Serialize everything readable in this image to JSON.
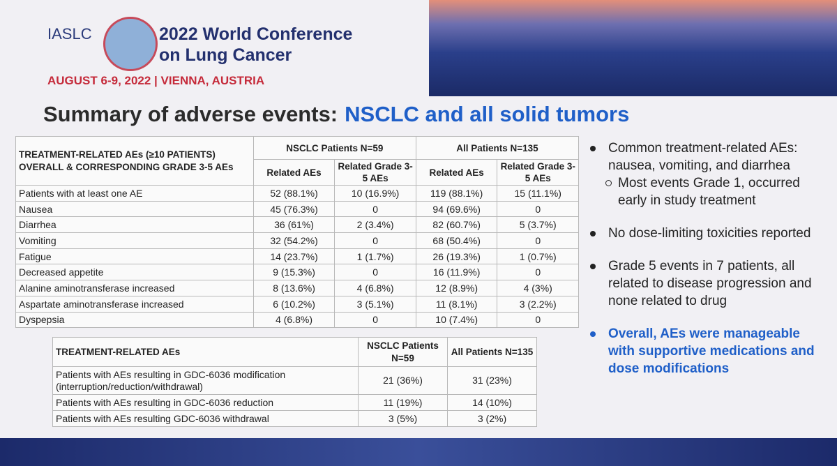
{
  "header": {
    "org": "IASLC",
    "conference": [
      "2022 World Conference",
      "on Lung Cancer"
    ],
    "date": "AUGUST 6-9, 2022 | VIENNA, AUSTRIA"
  },
  "title": {
    "black": "Summary of adverse events:",
    "blue": "NSCLC and all solid tumors"
  },
  "table1": {
    "corner": [
      "TREATMENT-RELATED AEs (≥10 PATIENTS)",
      "OVERALL & CORRESPONDING GRADE 3-5 AEs"
    ],
    "groups": [
      "NSCLC Patients N=59",
      "All Patients N=135"
    ],
    "subheaders": [
      "Related AEs",
      "Related Grade 3-5 AEs",
      "Related AEs",
      "Related Grade 3-5 AEs"
    ],
    "rows": [
      [
        "Patients with at least one AE",
        "52 (88.1%)",
        "10 (16.9%)",
        "119 (88.1%)",
        "15 (11.1%)"
      ],
      [
        "Nausea",
        "45 (76.3%)",
        "0",
        "94 (69.6%)",
        "0"
      ],
      [
        "Diarrhea",
        "36 (61%)",
        "2 (3.4%)",
        "82 (60.7%)",
        "5 (3.7%)"
      ],
      [
        "Vomiting",
        "32 (54.2%)",
        "0",
        "68 (50.4%)",
        "0"
      ],
      [
        "Fatigue",
        "14 (23.7%)",
        "1 (1.7%)",
        "26 (19.3%)",
        "1 (0.7%)"
      ],
      [
        "Decreased appetite",
        "9 (15.3%)",
        "0",
        "16 (11.9%)",
        "0"
      ],
      [
        "Alanine aminotransferase increased",
        "8 (13.6%)",
        "4 (6.8%)",
        "12 (8.9%)",
        "4 (3%)"
      ],
      [
        "Aspartate aminotransferase increased",
        "6 (10.2%)",
        "3 (5.1%)",
        "11 (8.1%)",
        "3 (2.2%)"
      ],
      [
        "Dyspepsia",
        "4 (6.8%)",
        "0",
        "10 (7.4%)",
        "0"
      ]
    ]
  },
  "table2": {
    "header": [
      "TREATMENT-RELATED AEs",
      "NSCLC Patients N=59",
      "All Patients N=135"
    ],
    "rows": [
      [
        "Patients with AEs resulting in GDC-6036 modification (interruption/reduction/withdrawal)",
        "21 (36%)",
        "31 (23%)"
      ],
      [
        "Patients with AEs resulting in GDC-6036 reduction",
        "11 (19%)",
        "14 (10%)"
      ],
      [
        "Patients with AEs resulting GDC-6036 withdrawal",
        "3 (5%)",
        "3 (2%)"
      ]
    ]
  },
  "bullets": [
    {
      "text": "Common treatment-related AEs: nausea, vomiting, and diarrhea",
      "sub": "Most events Grade 1, occurred early in study treatment",
      "highlight": false
    },
    {
      "text": "No dose-limiting toxicities reported",
      "highlight": false
    },
    {
      "text": "Grade 5 events in 7 patients, all related to disease progression and none related to drug",
      "highlight": false
    },
    {
      "text": "Overall, AEs were manageable with supportive medications and dose modifications",
      "highlight": true
    }
  ]
}
